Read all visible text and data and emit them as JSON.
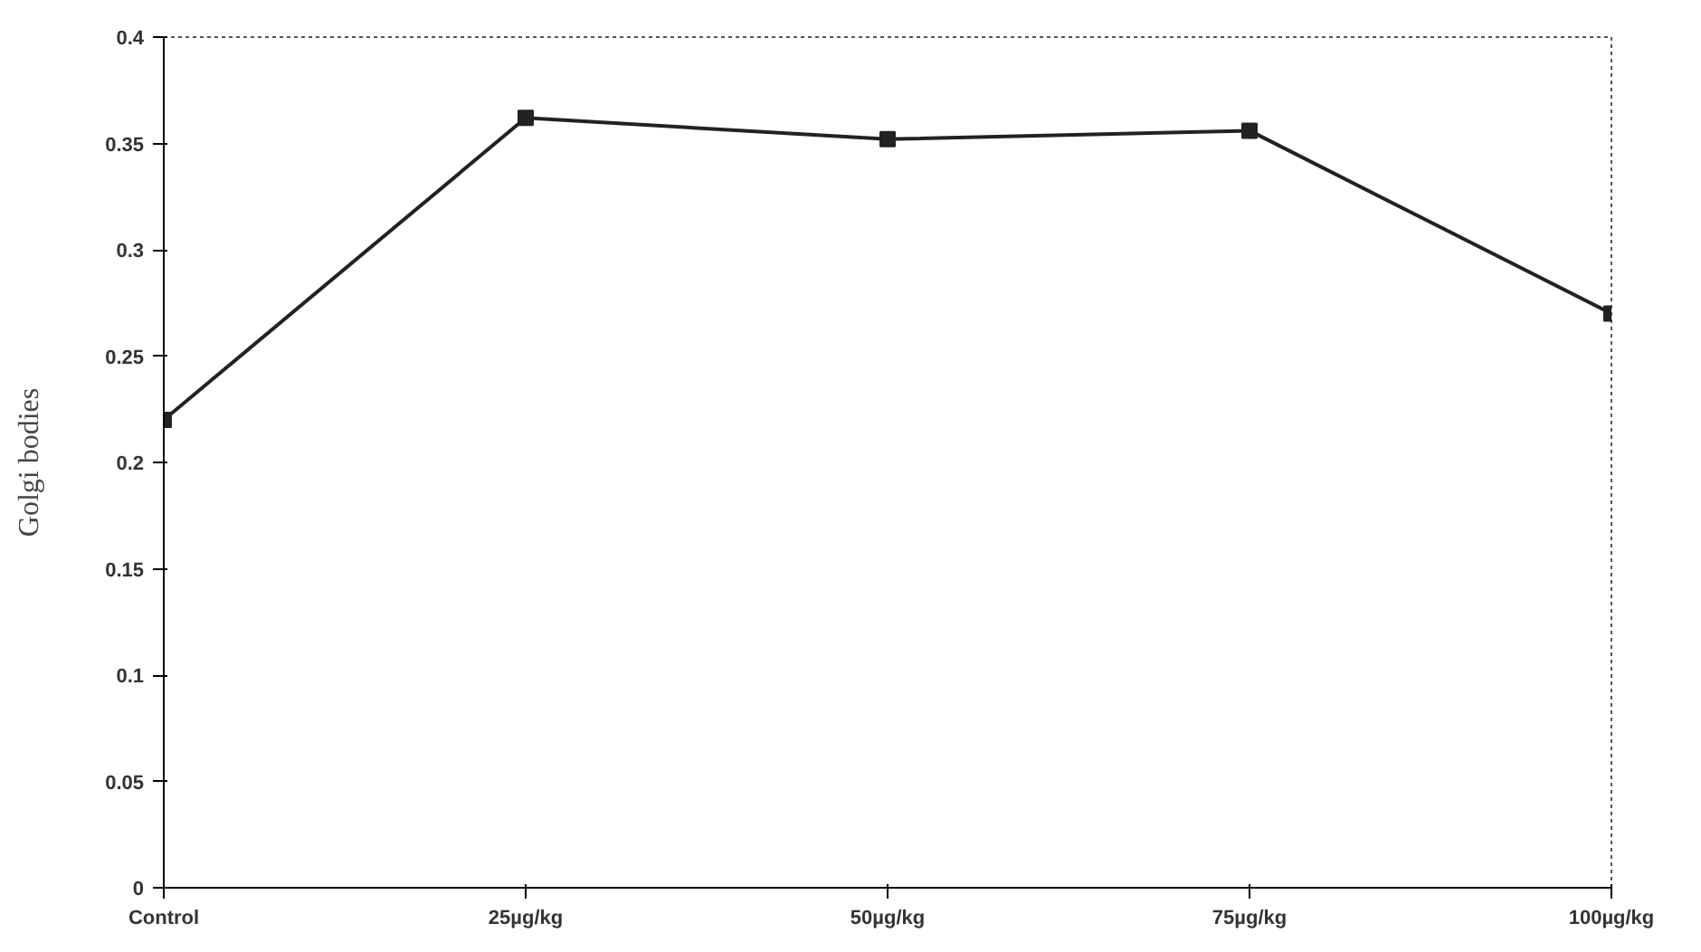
{
  "chart_data": {
    "type": "line",
    "ylabel": "Golgi bodies",
    "categories": [
      "Control",
      "25µg/kg",
      "50µg/kg",
      "75µg/kg",
      "100µg/kg"
    ],
    "series": [
      {
        "color": "#222222",
        "values": [
          0.22,
          0.362,
          0.352,
          0.356,
          0.27
        ]
      }
    ],
    "ylim": [
      0,
      0.4
    ],
    "yticks": [
      0,
      0.05,
      0.1,
      0.15,
      0.2,
      0.25,
      0.3,
      0.35,
      0.4
    ],
    "grid": false,
    "marker": "square",
    "line_style": "solid"
  }
}
